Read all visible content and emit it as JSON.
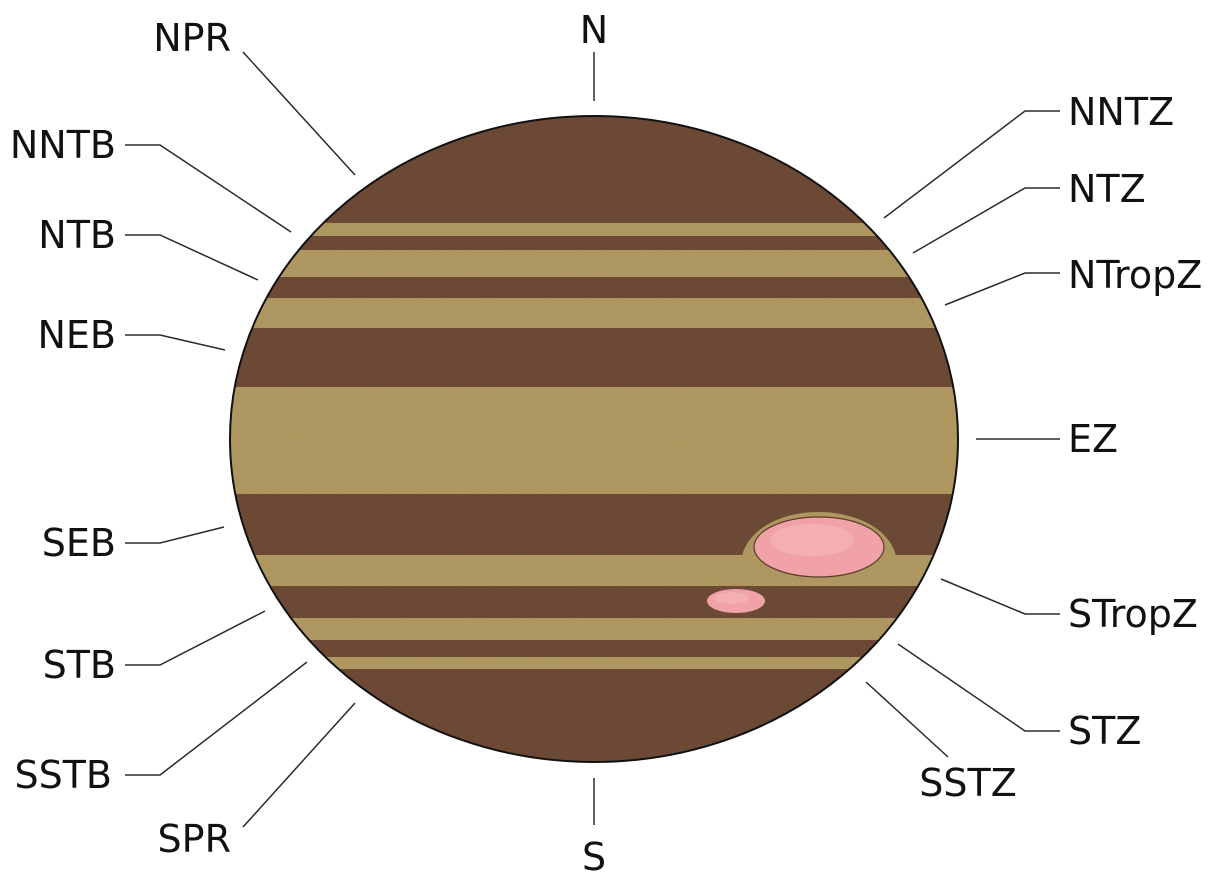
{
  "diagram": {
    "labels": {
      "n": "N",
      "s": "S",
      "npr": "NPR",
      "nntb": "NNTB",
      "ntb": "NTB",
      "neb": "NEB",
      "seb": "SEB",
      "stb": "STB",
      "sstb": "SSTB",
      "spr": "SPR",
      "nntz": "NNTZ",
      "ntz": "NTZ",
      "ntropz": "NTropZ",
      "ez": "EZ",
      "stropz": "STropZ",
      "stz": "STZ",
      "sstz": "SSTZ"
    },
    "colors": {
      "belt": "#6e4b35",
      "zone": "#b19a62",
      "outline": "#111111",
      "spot": "#f0a2a8",
      "spot_rim": "#c96f72",
      "leader": "#2a2a2a"
    }
  }
}
